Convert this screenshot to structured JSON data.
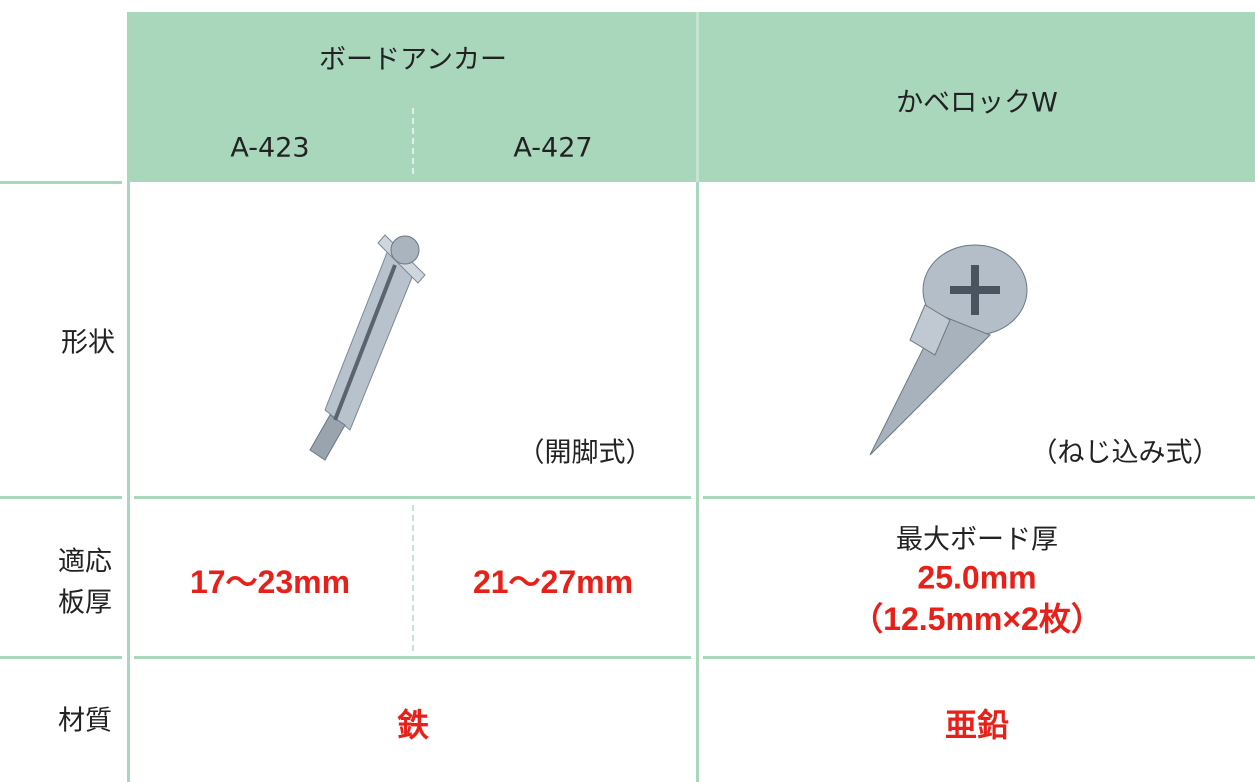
{
  "table": {
    "header": {
      "group": "ボードアンカー",
      "models": [
        "A-423",
        "A-427"
      ],
      "other": "かベロックW"
    },
    "rows": [
      {
        "label": "形状",
        "notes": [
          "（開脚式）",
          "（ねじ込み式）"
        ]
      },
      {
        "label_lines": [
          "適応",
          "板厚"
        ],
        "values": [
          "17～23mm",
          "21～27mm"
        ],
        "other": {
          "caption": "最大ボード厚",
          "value": "25.0mm",
          "detail": "（12.5mm×2枚）"
        }
      },
      {
        "label": "材質",
        "values": [
          "鉄",
          "亜鉛"
        ]
      }
    ]
  }
}
